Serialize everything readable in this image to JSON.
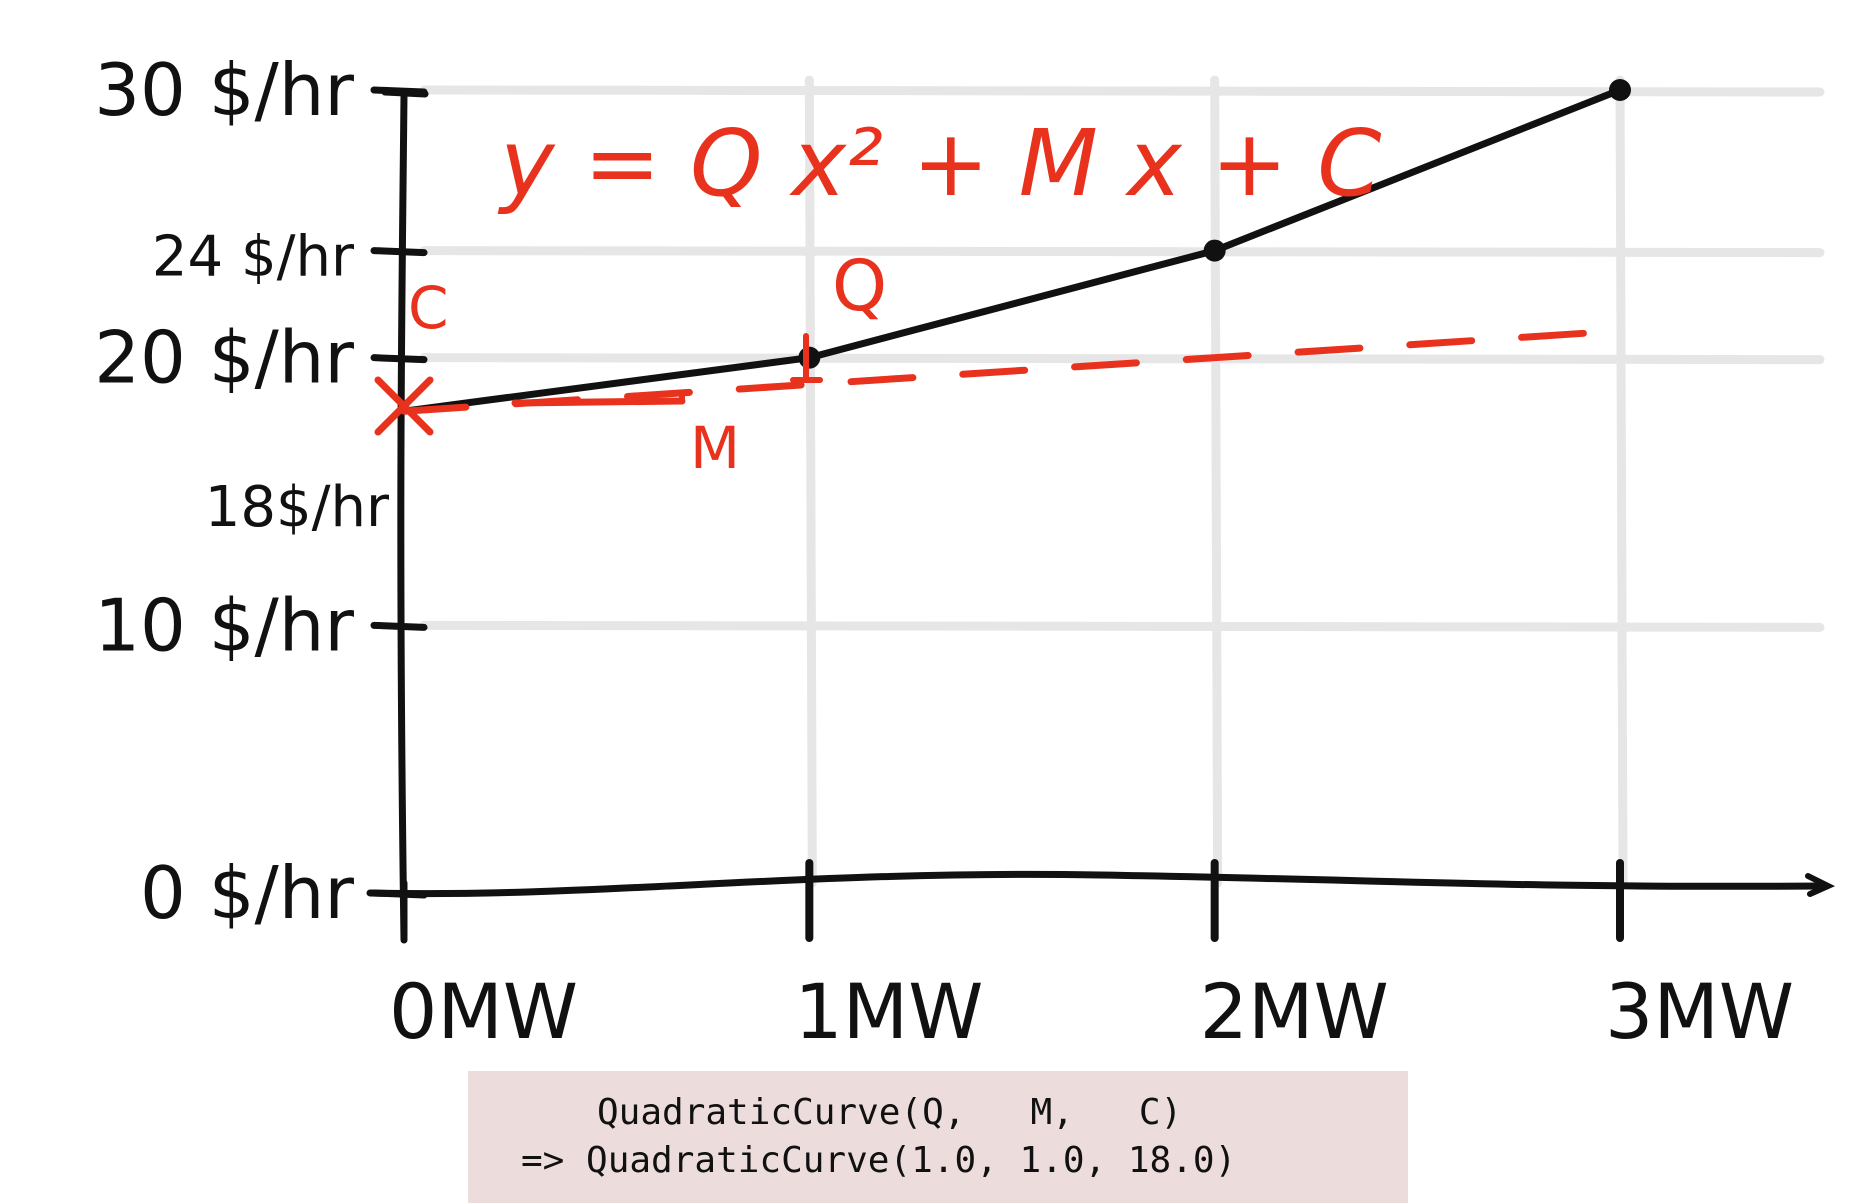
{
  "chart_data": {
    "type": "line",
    "title": "",
    "xlabel": "",
    "ylabel": "",
    "x_ticks": [
      "0MW",
      "1MW",
      "2MW",
      "3MW"
    ],
    "y_ticks": [
      "0 $/hr",
      "10 $/hr",
      "18$/hr",
      "20 $/hr",
      "24 $/hr",
      "30 $/hr"
    ],
    "xlim": [
      0,
      3
    ],
    "ylim": [
      0,
      30
    ],
    "grid": true,
    "series": [
      {
        "color": "#111111",
        "style": "solid",
        "x": [
          0,
          1,
          2,
          3
        ],
        "y": [
          18,
          20,
          24,
          30
        ]
      },
      {
        "color": "#e8321e",
        "style": "dashed",
        "x": [
          0,
          3
        ],
        "y": [
          18,
          21
        ]
      }
    ],
    "annotations": {
      "equation": "y = Q x² + M x + C",
      "q_label": "Q",
      "m_label": "M",
      "c_label": "C"
    }
  },
  "code": {
    "line1": "QuadraticCurve(Q,   M,   C)",
    "line2": "=> QuadraticCurve(1.0, 1.0, 18.0)"
  },
  "colors": {
    "ink": "#111111",
    "accent": "#e8321e",
    "grid": "#e6e6e6",
    "code_bg": "#eddcdc"
  }
}
